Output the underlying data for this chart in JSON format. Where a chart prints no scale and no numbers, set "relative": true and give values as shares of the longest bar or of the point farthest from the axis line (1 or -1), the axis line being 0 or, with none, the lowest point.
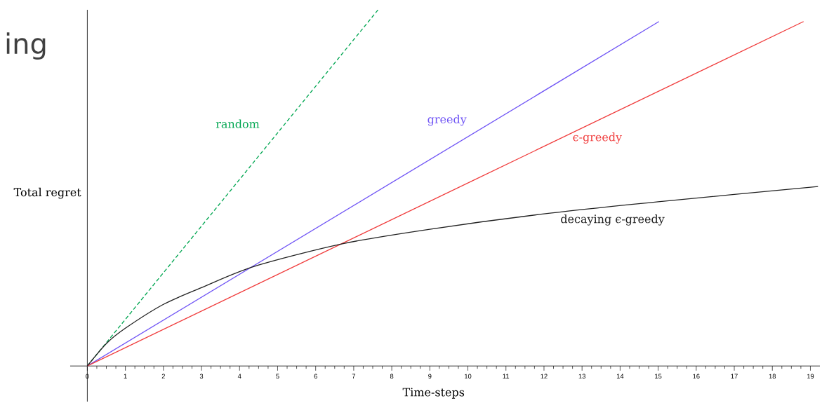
{
  "chart_data": {
    "type": "line",
    "title": "ing",
    "xlabel": "Time-steps",
    "ylabel": "Total regret",
    "relative": true,
    "tick_labels": "x",
    "marker": "none",
    "xlim": [
      -0.45,
      19.25
    ],
    "xticks": [
      0,
      1,
      2,
      3,
      4,
      5,
      6,
      7,
      8,
      9,
      10,
      11,
      12,
      13,
      14,
      15,
      16,
      17,
      18,
      19
    ],
    "series": [
      {
        "name": "random",
        "color": "#00a651",
        "line_style": "dashed",
        "x": [
          0,
          7.64
        ],
        "values": [
          0,
          1
        ]
      },
      {
        "name": "greedy",
        "color": "#7055f5",
        "line_style": "solid",
        "x": [
          0,
          15.02
        ],
        "values": [
          0,
          0.967
        ]
      },
      {
        "name": "ϵ-greedy",
        "color": "#f03c3c",
        "line_style": "solid",
        "x": [
          0,
          18.82
        ],
        "values": [
          0,
          0.967
        ]
      },
      {
        "name": "decaying ϵ-greedy",
        "color": "#222222",
        "line_style": "solid",
        "x": [
          0,
          0.5,
          1,
          2,
          3,
          4.4,
          6.7,
          9,
          12,
          15,
          19.2
        ],
        "values": [
          0,
          0.063,
          0.106,
          0.173,
          0.22,
          0.28,
          0.343,
          0.384,
          0.427,
          0.461,
          0.504
        ]
      }
    ]
  }
}
